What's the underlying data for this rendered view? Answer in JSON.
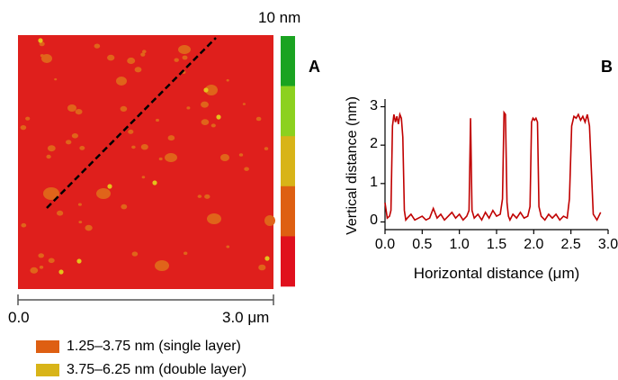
{
  "afm_image": {
    "colorbar_max_label": "10 nm",
    "colorbar_colors": [
      "#1aa321",
      "#8cd11f",
      "#d8b418",
      "#de5f12",
      "#e0101d"
    ],
    "background_color": "#df1f1c",
    "flake_color": "#e0641a",
    "bright_spot_color": "#e3c21b",
    "scale_start_label": "0.0",
    "scale_end_label": "3.0 μm"
  },
  "panel_labels": {
    "a": "A",
    "b": "B"
  },
  "legend": [
    {
      "color": "#de5f12",
      "label": "1.25–3.75 nm (single layer)"
    },
    {
      "color": "#d8b418",
      "label": "3.75–6.25 nm (double layer)"
    }
  ],
  "chart_data": {
    "type": "line",
    "xlabel": "Horizontal distance (μm)",
    "ylabel": "Vertical distance (nm)",
    "xlim": [
      0,
      3.0
    ],
    "ylim": [
      -0.2,
      3.2
    ],
    "x_ticks": [
      "0.0",
      "0.5",
      "1.0",
      "1.5",
      "2.0",
      "2.5",
      "3.0"
    ],
    "y_ticks": [
      "0",
      "1",
      "2",
      "3"
    ],
    "series": [
      {
        "color": "#c00000",
        "x": [
          0.0,
          0.03,
          0.06,
          0.08,
          0.1,
          0.12,
          0.14,
          0.16,
          0.18,
          0.2,
          0.22,
          0.24,
          0.26,
          0.28,
          0.3,
          0.35,
          0.4,
          0.45,
          0.5,
          0.55,
          0.6,
          0.65,
          0.7,
          0.75,
          0.8,
          0.85,
          0.9,
          0.95,
          1.0,
          1.05,
          1.1,
          1.13,
          1.15,
          1.17,
          1.2,
          1.25,
          1.3,
          1.35,
          1.4,
          1.45,
          1.5,
          1.55,
          1.58,
          1.6,
          1.62,
          1.64,
          1.66,
          1.68,
          1.72,
          1.77,
          1.82,
          1.87,
          1.92,
          1.95,
          1.97,
          1.99,
          2.01,
          2.03,
          2.05,
          2.07,
          2.1,
          2.15,
          2.2,
          2.25,
          2.3,
          2.35,
          2.4,
          2.45,
          2.48,
          2.51,
          2.54,
          2.57,
          2.6,
          2.63,
          2.66,
          2.69,
          2.72,
          2.75,
          2.8,
          2.85,
          2.9
        ],
        "values": [
          0.5,
          0.1,
          0.15,
          0.3,
          2.5,
          2.8,
          2.6,
          2.75,
          2.55,
          2.8,
          2.7,
          2.2,
          0.3,
          0.05,
          0.1,
          0.2,
          0.05,
          0.1,
          0.15,
          0.05,
          0.1,
          0.35,
          0.1,
          0.2,
          0.05,
          0.15,
          0.25,
          0.1,
          0.2,
          0.05,
          0.15,
          0.3,
          2.7,
          0.3,
          0.1,
          0.2,
          0.05,
          0.25,
          0.1,
          0.3,
          0.15,
          0.2,
          0.6,
          2.85,
          2.8,
          0.5,
          0.15,
          0.05,
          0.2,
          0.1,
          0.25,
          0.1,
          0.15,
          0.4,
          2.6,
          2.7,
          2.65,
          2.7,
          2.6,
          0.4,
          0.15,
          0.05,
          0.2,
          0.1,
          0.2,
          0.05,
          0.15,
          0.1,
          0.6,
          2.5,
          2.75,
          2.7,
          2.8,
          2.65,
          2.75,
          2.6,
          2.8,
          2.5,
          0.2,
          0.05,
          0.25
        ]
      }
    ]
  }
}
